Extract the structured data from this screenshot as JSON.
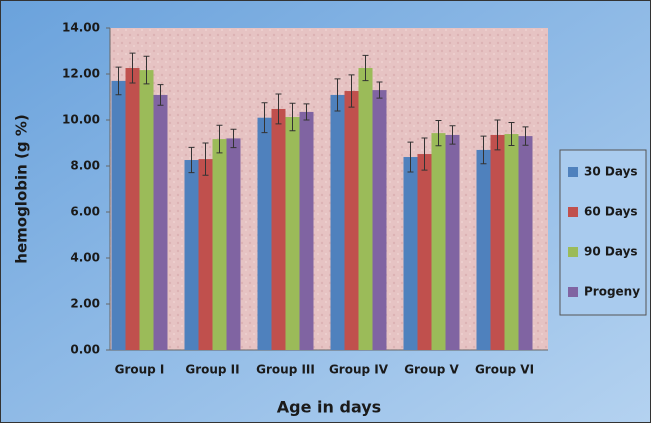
{
  "chart_data": {
    "type": "bar",
    "x_label": "Age in days",
    "y_label": "hemoglobin (g %)",
    "categories": [
      "Group I",
      "Group II",
      "Group III",
      "Group IV",
      "Group V",
      "Group VI"
    ],
    "series": [
      {
        "name": "30 Days",
        "color": "#4f81bd",
        "values": [
          11.7,
          8.26,
          10.1,
          11.09,
          8.39,
          8.7
        ],
        "errors": [
          0.6,
          0.55,
          0.65,
          0.7,
          0.65,
          0.6
        ]
      },
      {
        "name": "60 Days",
        "color": "#c0504d",
        "values": [
          12.26,
          8.3,
          10.48,
          11.26,
          8.52,
          9.35
        ],
        "errors": [
          0.65,
          0.7,
          0.65,
          0.7,
          0.7,
          0.65
        ]
      },
      {
        "name": "90 Days",
        "color": "#9bbb59",
        "values": [
          12.17,
          9.17,
          10.13,
          12.26,
          9.43,
          9.39
        ],
        "errors": [
          0.6,
          0.6,
          0.6,
          0.55,
          0.55,
          0.5
        ]
      },
      {
        "name": "Progeny",
        "color": "#8064a2",
        "values": [
          11.09,
          9.2,
          10.35,
          11.3,
          9.35,
          9.3
        ],
        "errors": [
          0.45,
          0.4,
          0.35,
          0.35,
          0.4,
          0.4
        ]
      }
    ],
    "ylim": [
      0,
      14
    ],
    "yticks": [
      {
        "value": 0,
        "label": "0.00"
      },
      {
        "value": 2,
        "label": "2.00"
      },
      {
        "value": 4,
        "label": "4.00"
      },
      {
        "value": 6,
        "label": "6.00"
      },
      {
        "value": 8,
        "label": "8.00"
      },
      {
        "value": 10,
        "label": "10.00"
      },
      {
        "value": 12,
        "label": "12.00"
      },
      {
        "value": 14,
        "label": "14.00"
      }
    ],
    "legend_position": "right"
  }
}
